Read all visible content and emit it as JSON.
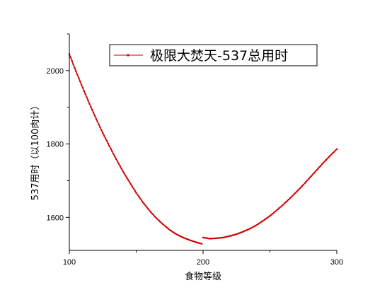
{
  "chart_data": {
    "type": "line",
    "title": "",
    "xlabel": "食物等级",
    "ylabel": "537用时（以100肉计）",
    "xlim": [
      100,
      300
    ],
    "ylim": [
      1510,
      2100
    ],
    "xticks": [
      100,
      200,
      300
    ],
    "yticks": [
      1600,
      1800,
      2000
    ],
    "grid": false,
    "legend_position": "top-right",
    "series": [
      {
        "name": "极限大焚天-537总用时",
        "color": "#cc0000",
        "marker": "square",
        "segments": [
          {
            "x": [
              100,
              105,
              110,
              115,
              120,
              125,
              130,
              135,
              140,
              145,
              150,
              155,
              160,
              165,
              170,
              175,
              180,
              185,
              190,
              195,
              199
            ],
            "y": [
              2045,
              1998,
              1953,
              1910,
              1869,
              1830,
              1794,
              1759,
              1726,
              1696,
              1667,
              1641,
              1618,
              1598,
              1581,
              1566,
              1554,
              1545,
              1538,
              1532,
              1528
            ]
          },
          {
            "x": [
              200,
              205,
              210,
              215,
              220,
              225,
              230,
              235,
              240,
              245,
              250,
              255,
              260,
              265,
              270,
              275,
              280,
              285,
              290,
              295,
              300
            ],
            "y": [
              1545,
              1542,
              1543,
              1545,
              1549,
              1554,
              1561,
              1569,
              1579,
              1591,
              1604,
              1619,
              1635,
              1652,
              1670,
              1689,
              1709,
              1729,
              1749,
              1768,
              1786
            ]
          }
        ]
      }
    ]
  }
}
